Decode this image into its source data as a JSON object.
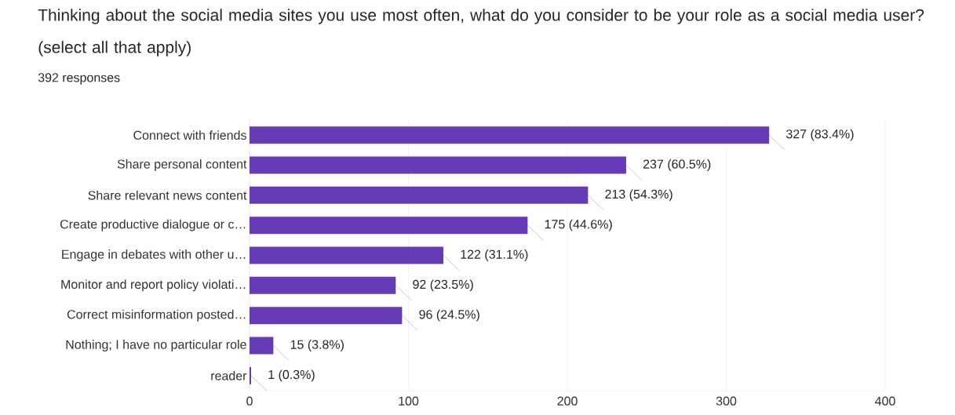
{
  "chart_data": {
    "type": "bar",
    "orientation": "horizontal",
    "title": "Thinking about the social media sites you use most often, what do you consider to be your role as a social media user? (select all that apply)",
    "subtitle": "392 responses",
    "categories": [
      "Connect with friends",
      "Share personal content",
      "Share relevant news content",
      "Create productive dialogue or c…",
      "Engage in debates with other u…",
      "Monitor and report policy violati…",
      "Correct misinformation posted…",
      "Nothing; I have no particular role",
      "reader"
    ],
    "values": [
      327,
      237,
      213,
      175,
      122,
      92,
      96,
      15,
      1
    ],
    "value_labels": [
      "327 (83.4%)",
      "237 (60.5%)",
      "213 (54.3%)",
      "175 (44.6%)",
      "122 (31.1%)",
      "92 (23.5%)",
      "96 (24.5%)",
      "15 (3.8%)",
      "1 (0.3%)"
    ],
    "color": "#673ab7",
    "xlim": [
      0,
      400
    ],
    "xticks": [
      0,
      100,
      200,
      300,
      400
    ],
    "grid": "x"
  }
}
